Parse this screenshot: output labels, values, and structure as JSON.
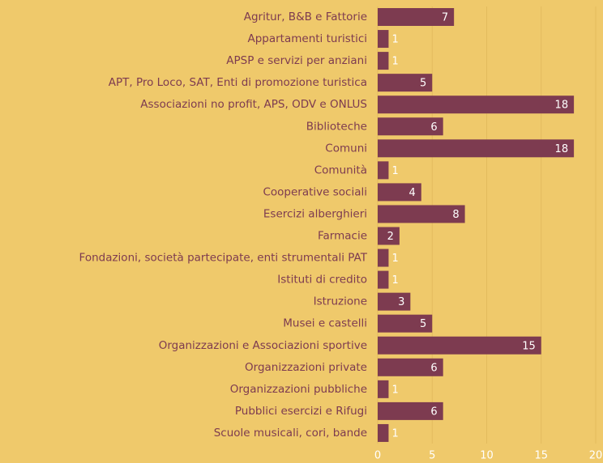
{
  "chart_data": {
    "type": "bar",
    "orientation": "horizontal",
    "color": "#7d3b50",
    "categories": [
      "Agritur, B&B e Fattorie",
      "Appartamenti turistici",
      "APSP e servizi per anziani",
      "APT, Pro Loco, SAT, Enti di promozione turistica",
      "Associazioni no profit, APS, ODV e ONLUS",
      "Biblioteche",
      "Comuni",
      "Comunità",
      "Cooperative sociali",
      "Esercizi alberghieri",
      "Farmacie",
      "Fondazioni, società partecipate, enti strumentali PAT",
      "Istituti di credito",
      "Istruzione",
      "Musei e castelli",
      "Organizzazioni e Associazioni sportive",
      "Organizzazioni private",
      "Organizzazioni pubbliche",
      "Pubblici esercizi e Rifugi",
      "Scuole musicali, cori, bande"
    ],
    "values": [
      7,
      1,
      1,
      5,
      18,
      6,
      18,
      1,
      4,
      8,
      2,
      1,
      1,
      3,
      5,
      15,
      6,
      1,
      6,
      1
    ],
    "xlim": [
      0,
      20
    ],
    "xticks": [
      0,
      5,
      10,
      15,
      20
    ],
    "grid": true
  }
}
